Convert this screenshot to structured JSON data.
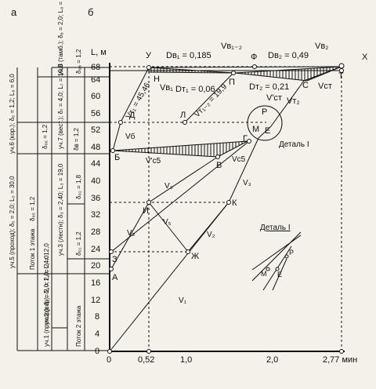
{
  "panel_labels": {
    "a": "а",
    "b": "б"
  },
  "axis": {
    "y_label": "L, м",
    "y_ticks": [
      "0",
      "4",
      "8",
      "12",
      "16",
      "20",
      "24",
      "28",
      "32",
      "36",
      "40",
      "44",
      "48",
      "52",
      "56",
      "60",
      "64",
      "68"
    ],
    "x_ticks": [
      "0",
      "0,52",
      "1,0",
      "2,0",
      "2,77 мин"
    ]
  },
  "points": {
    "U": "У",
    "F": "Ф",
    "X": "Х",
    "N": "Н",
    "P": "П",
    "L": "Л",
    "D": "Д",
    "T": "Т",
    "C": "С",
    "R": "Р",
    "M": "М",
    "E": "Е",
    "G": "Г",
    "B": "Б",
    "V": "В",
    "K": "К",
    "I": "И",
    "Z": "З",
    "A": "А",
    "J": "Ж"
  },
  "labels": {
    "d_b1": "Dв₁ = 0,185",
    "v_b12": "Vв₁₋₂",
    "d_b2": "Dв₂ = 0,49",
    "v_b2": "Vв₂",
    "v_b1": "Vв₁",
    "d_t1": "Dт₁ = 0,06",
    "d_t2": "Dт₂ = 0,21",
    "v_t": "Vст",
    "v_t_prime": "V'ст",
    "v_t2": "Vт₂",
    "v_t1": "Vт₁ = 45,46",
    "v_t12": "Vт₁₋₂ = 19,9",
    "v6": "Vб",
    "v5_prime": "V'c5",
    "vc5": "Vc5",
    "v3": "V₃",
    "v5": "V₅",
    "v2": "V₂",
    "v1": "V₁",
    "detail_label": "Деталь I",
    "detail_title": "Деталь I",
    "flow1": "Поток 1 этажа",
    "flow2": "Поток 2 этажа",
    "d_b": "δв = 1,2",
    "d_08": "δ₀₈ = 1,2",
    "d_06": "δ₀₆ = 1,2",
    "d_05": "δ₀₅ = 1,2",
    "d_02": "δ₀₂ = 1,8",
    "d_01": "δ₀₁ = 1,2",
    "uch8": "уч.8 (тамб.); δ₈ = 2,0; L₈ = 2,0",
    "uch7": "уч.7 (вест.); δ₇ = 4,0; L₇ = 10,0",
    "uch6": "уч.6 (кор.); δ₆ = 1,2; L₆ = 6,0",
    "uch5": "уч.5 (проход); δ₅ = 2,0; L₅ = 30,0",
    "uch3": "уч.3 (лестн); δ₃ = 2,40; L₃ = 19,0",
    "uch2": "уч.2 (кор); δ₂ = 2,0; L₂ = 12,0",
    "uch1": "уч.1 (проход); δ₁ = 2,0; L₁ = 24,0"
  }
}
